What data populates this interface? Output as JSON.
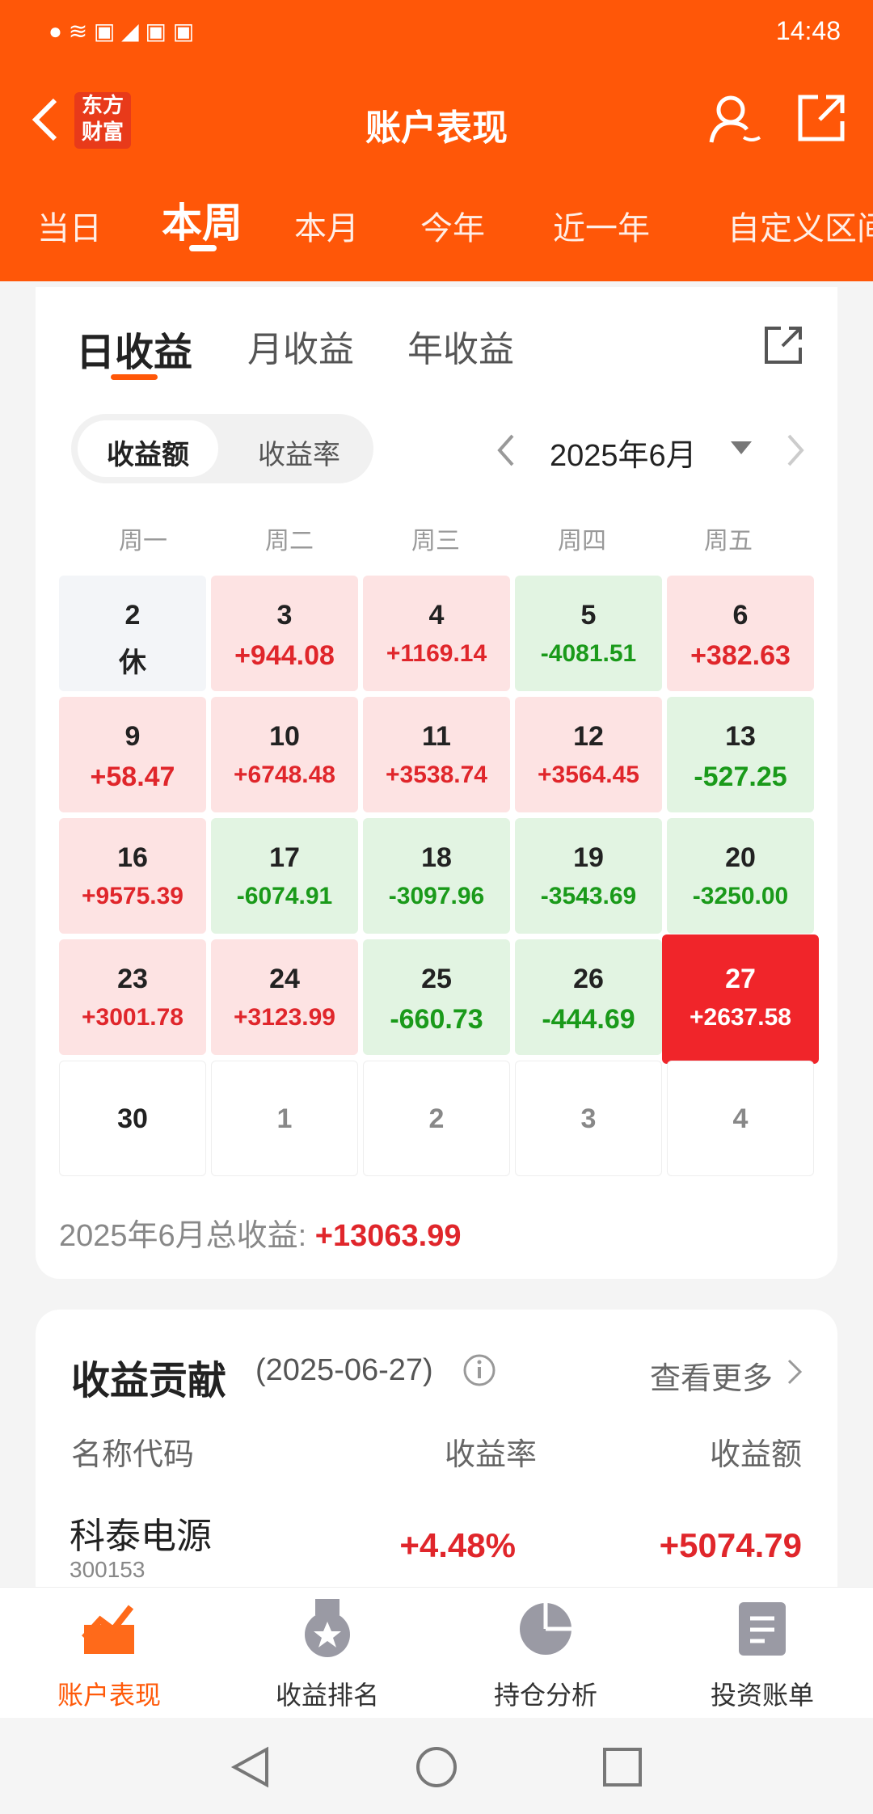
{
  "status_bar": {
    "time": "14:48"
  },
  "header": {
    "logo": [
      "东方",
      "财富"
    ],
    "title": "账户表现"
  },
  "tabs": [
    "当日",
    "本周",
    "本月",
    "今年",
    "近一年",
    "自定义区间"
  ],
  "period_tabs": [
    "日收益",
    "月收益",
    "年收益"
  ],
  "toggle": [
    "收益额",
    "收益率"
  ],
  "month": "2025年6月",
  "weekdays": [
    "周一",
    "周二",
    "周三",
    "周四",
    "周五"
  ],
  "calendar": [
    [
      {
        "day": "2",
        "value": "休"
      },
      {
        "day": "3",
        "value": "+944.08"
      },
      {
        "day": "4",
        "value": "+1169.14"
      },
      {
        "day": "5",
        "value": "-4081.51"
      },
      {
        "day": "6",
        "value": "+382.63"
      }
    ],
    [
      {
        "day": "9",
        "value": "+58.47"
      },
      {
        "day": "10",
        "value": "+6748.48"
      },
      {
        "day": "11",
        "value": "+3538.74"
      },
      {
        "day": "12",
        "value": "+3564.45"
      },
      {
        "day": "13",
        "value": "-527.25"
      }
    ],
    [
      {
        "day": "16",
        "value": "+9575.39"
      },
      {
        "day": "17",
        "value": "-6074.91"
      },
      {
        "day": "18",
        "value": "-3097.96"
      },
      {
        "day": "19",
        "value": "-3543.69"
      },
      {
        "day": "20",
        "value": "-3250.00"
      }
    ],
    [
      {
        "day": "23",
        "value": "+3001.78"
      },
      {
        "day": "24",
        "value": "+3123.99"
      },
      {
        "day": "25",
        "value": "-660.73"
      },
      {
        "day": "26",
        "value": "-444.69"
      },
      {
        "day": "27",
        "value": "+2637.58"
      }
    ],
    [
      {
        "day": "30"
      },
      {
        "day": "1"
      },
      {
        "day": "2"
      },
      {
        "day": "3"
      },
      {
        "day": "4"
      }
    ]
  ],
  "total_label": "2025年6月总收益:",
  "total_value": "+13063.99",
  "contribution": {
    "title": "收益贡献",
    "date": "(2025-06-27)",
    "more": "查看更多",
    "columns": [
      "名称代码",
      "收益率",
      "收益额"
    ],
    "rows": [
      {
        "name": "科泰电源",
        "code": "300153",
        "rate": "+4.48%",
        "amount": "+5074.79"
      }
    ]
  },
  "bottom_nav": [
    "账户表现",
    "收益排名",
    "持仓分析",
    "投资账单"
  ]
}
